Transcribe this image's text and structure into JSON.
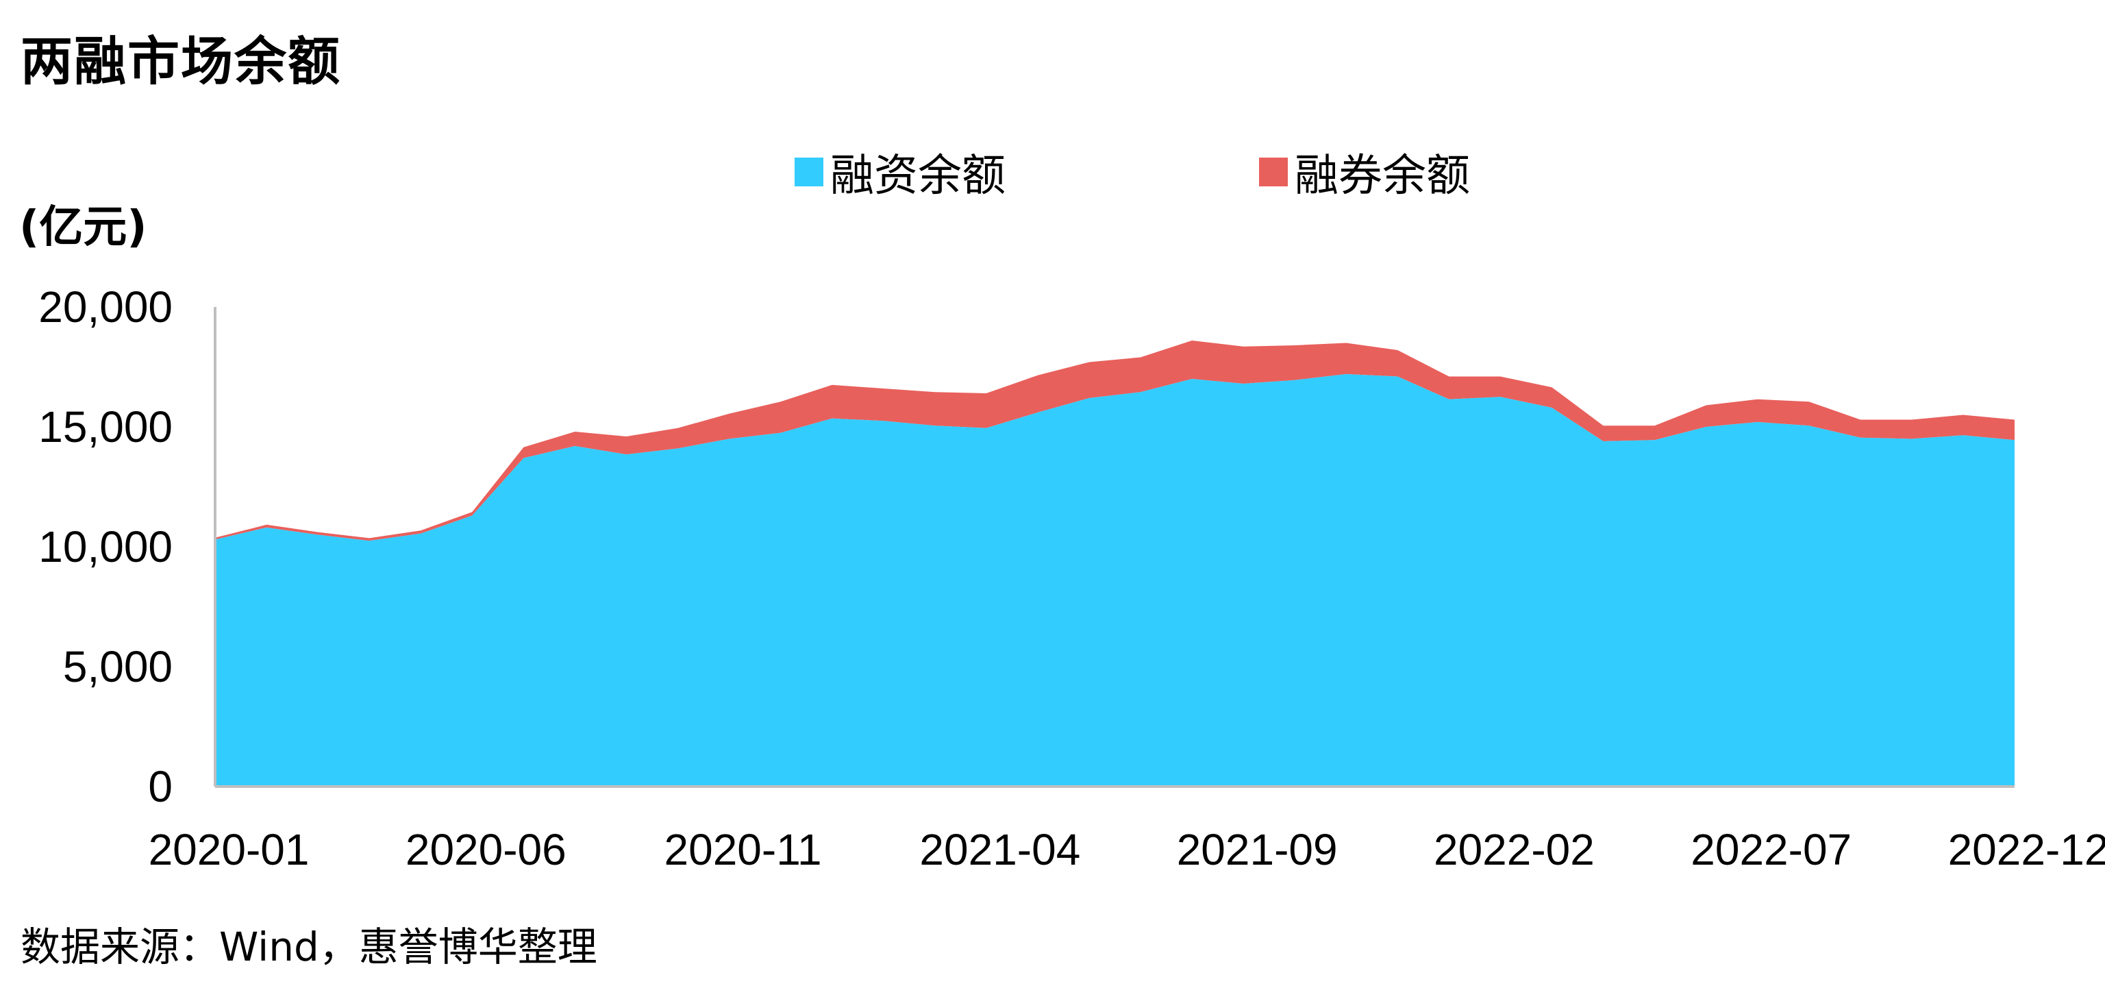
{
  "title": "两融市场余额",
  "unit_label": "(亿元)",
  "source_note": "数据来源：Wind，惠誉博华整理",
  "colors": {
    "financing": "#33CCFF",
    "securities_lending": "#E8605C",
    "axis": "#BFBFBF"
  },
  "chart_data": {
    "type": "area",
    "stacked": true,
    "title": "两融市场余额",
    "ylabel": "(亿元)",
    "ylim": [
      0,
      20000
    ],
    "yticks": [
      0,
      5000,
      10000,
      15000,
      20000
    ],
    "ytick_labels": [
      "0",
      "5,000",
      "10,000",
      "15,000",
      "20,000"
    ],
    "xtick_labels": [
      "2020-01",
      "2020-06",
      "2020-11",
      "2021-04",
      "2021-09",
      "2022-02",
      "2022-07",
      "2022-12"
    ],
    "legend_position": "top-center",
    "x": [
      "2020-01",
      "2020-02",
      "2020-03",
      "2020-04",
      "2020-05",
      "2020-06",
      "2020-07",
      "2020-08",
      "2020-09",
      "2020-10",
      "2020-11",
      "2020-12",
      "2021-01",
      "2021-02",
      "2021-03",
      "2021-04",
      "2021-05",
      "2021-06",
      "2021-07",
      "2021-08",
      "2021-09",
      "2021-10",
      "2021-11",
      "2021-12",
      "2022-01",
      "2022-02",
      "2022-03",
      "2022-04",
      "2022-05",
      "2022-06",
      "2022-07",
      "2022-08",
      "2022-09",
      "2022-10",
      "2022-11",
      "2022-12"
    ],
    "series": [
      {
        "name": "融资余额",
        "values": [
          10300,
          10800,
          10500,
          10250,
          10550,
          11300,
          13700,
          14200,
          13850,
          14100,
          14500,
          14750,
          15350,
          15250,
          15050,
          14950,
          15600,
          16200,
          16450,
          17000,
          16800,
          16950,
          17200,
          17100,
          16150,
          16250,
          15800,
          14400,
          14450,
          15000,
          15200,
          15050,
          14550,
          14500,
          14650,
          14450
        ]
      },
      {
        "name": "融券余额",
        "values": [
          80,
          120,
          110,
          110,
          130,
          150,
          450,
          600,
          750,
          850,
          1050,
          1300,
          1400,
          1350,
          1400,
          1450,
          1550,
          1500,
          1450,
          1600,
          1550,
          1450,
          1300,
          1100,
          950,
          850,
          850,
          650,
          600,
          900,
          950,
          1000,
          750,
          800,
          850,
          850
        ]
      }
    ]
  }
}
